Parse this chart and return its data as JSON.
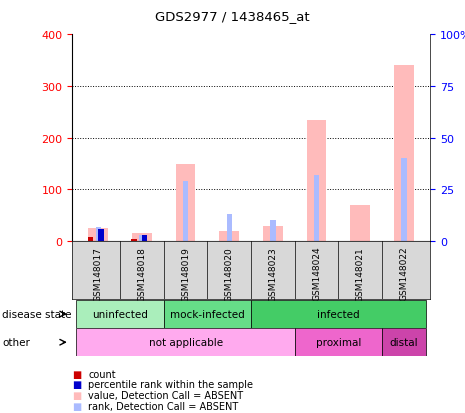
{
  "title": "GDS2977 / 1438465_at",
  "samples": [
    "GSM148017",
    "GSM148018",
    "GSM148019",
    "GSM148020",
    "GSM148023",
    "GSM148024",
    "GSM148021",
    "GSM148022"
  ],
  "absent_value_bars": [
    25,
    15,
    150,
    20,
    30,
    235,
    70,
    340
  ],
  "absent_rank_pct": [
    7,
    3,
    29,
    13,
    10,
    32,
    0,
    40
  ],
  "count_vals": [
    8,
    5,
    0,
    0,
    0,
    0,
    0,
    0
  ],
  "rank_pct": [
    6,
    3,
    0,
    0,
    0,
    0,
    0,
    0
  ],
  "disease_state_groups": [
    {
      "label": "uninfected",
      "start": 0,
      "end": 2,
      "color": "#aaeebb"
    },
    {
      "label": "mock-infected",
      "start": 2,
      "end": 4,
      "color": "#66dd88"
    },
    {
      "label": "infected",
      "start": 4,
      "end": 8,
      "color": "#44cc66"
    }
  ],
  "other_groups": [
    {
      "label": "not applicable",
      "start": 0,
      "end": 5,
      "color": "#ffaaee"
    },
    {
      "label": "proximal",
      "start": 5,
      "end": 7,
      "color": "#ee66cc"
    },
    {
      "label": "distal",
      "start": 7,
      "end": 8,
      "color": "#cc44aa"
    }
  ],
  "left_ylim": [
    0,
    400
  ],
  "right_ylim": [
    0,
    100
  ],
  "left_yticks": [
    0,
    100,
    200,
    300,
    400
  ],
  "right_yticks": [
    0,
    25,
    50,
    75,
    100
  ],
  "right_yticklabels": [
    "0",
    "25",
    "50",
    "75",
    "100%"
  ],
  "absent_value_color": "#ffbbbb",
  "absent_rank_color": "#aabbff",
  "count_color": "#cc0000",
  "rank_color": "#0000cc",
  "bg_color": "#d8d8d8",
  "plot_bg": "white"
}
